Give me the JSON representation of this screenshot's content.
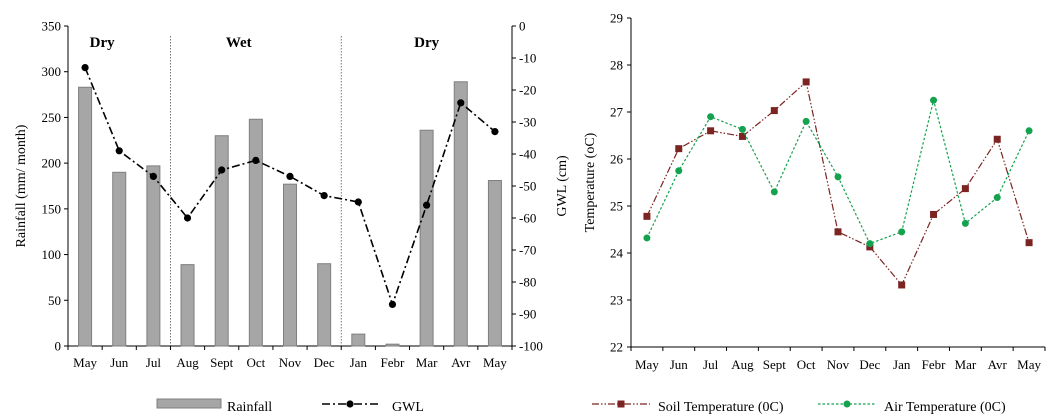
{
  "chart_data": [
    {
      "type": "bar+line",
      "categories": [
        "May",
        "Jun",
        "Jul",
        "Aug",
        "Sept",
        "Oct",
        "Nov",
        "Dec",
        "Jan",
        "Febr",
        "Mar",
        "Avr",
        "May"
      ],
      "series": [
        {
          "name": "Rainfall",
          "type": "bar",
          "axis": "left",
          "color": "#a6a6a6",
          "stroke": "#7f7f7f",
          "values": [
            283,
            190,
            197,
            89,
            230,
            248,
            177,
            90,
            13,
            2,
            236,
            289,
            181
          ]
        },
        {
          "name": "GWL",
          "type": "line",
          "axis": "right",
          "color": "#000000",
          "dash": "dash-dot",
          "values": [
            -13,
            -39,
            -47,
            -60,
            -45,
            -42,
            -47,
            -53,
            -55,
            -87,
            -56,
            -24,
            -33
          ]
        }
      ],
      "ylabel": "Rainfall (mm/ month)",
      "y2label": "GWL (cm)",
      "ylim": [
        0,
        350
      ],
      "yticks": [
        "0",
        "50",
        "100",
        "150",
        "200",
        "250",
        "300",
        "350"
      ],
      "y2lim": [
        -100,
        0
      ],
      "y2ticks": [
        "0",
        "-10",
        "-20",
        "-30",
        "-40",
        "-50",
        "-60",
        "-70",
        "-80",
        "-90",
        "-100"
      ],
      "seasons": [
        "Dry",
        "Wet",
        "Dry"
      ],
      "legend_position": "bottom",
      "grid": false
    },
    {
      "type": "line",
      "categories": [
        "May",
        "Jun",
        "Jul",
        "Aug",
        "Sept",
        "Oct",
        "Nov",
        "Dec",
        "Jan",
        "Febr",
        "Mar",
        "Avr",
        "May"
      ],
      "series": [
        {
          "name": "Soil Temperature (0C)",
          "color": "#7b2422",
          "marker": "square",
          "dash": "dash-dot-dot",
          "values": [
            24.78,
            26.22,
            26.6,
            26.48,
            27.03,
            27.64,
            24.45,
            24.13,
            23.32,
            24.82,
            25.37,
            26.42,
            24.22
          ]
        },
        {
          "name": "Air Temperature (0C)",
          "color": "#14a24e",
          "marker": "circle",
          "dash": "dotted",
          "values": [
            24.32,
            25.75,
            26.9,
            26.63,
            25.3,
            26.8,
            25.62,
            24.2,
            24.45,
            27.25,
            24.63,
            25.18,
            26.6
          ]
        }
      ],
      "ylabel": "Temperature (oC)",
      "ylim": [
        22,
        29
      ],
      "yticks": [
        "22",
        "23",
        "24",
        "25",
        "26",
        "27",
        "28",
        "29"
      ],
      "legend_position": "bottom",
      "grid": false
    }
  ]
}
